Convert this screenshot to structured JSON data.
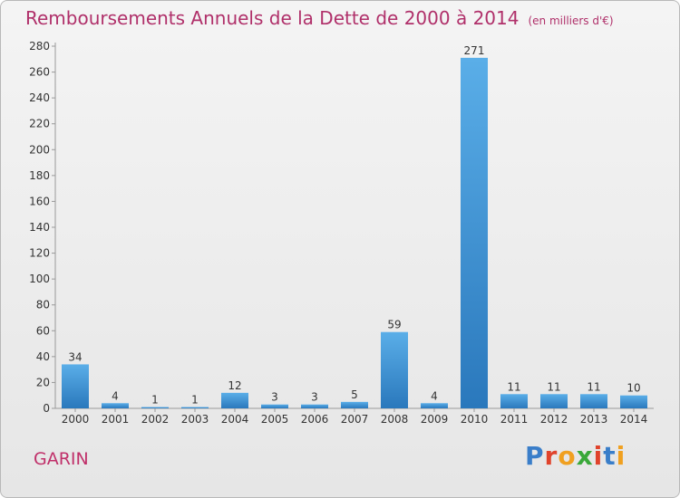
{
  "header": {
    "title": "Remboursements Annuels de la Dette de 2000 à 2014",
    "unit": "(en milliers d'€)"
  },
  "commune": "GARIN",
  "logo": {
    "text": "Proxiti",
    "letters": [
      "P",
      "r",
      "o",
      "x",
      "i",
      "t",
      "i"
    ]
  },
  "colors": {
    "title": "#b0306a",
    "bar_light": "#5aaee8",
    "bar_dark": "#2a78bc"
  },
  "chart_data": {
    "type": "bar",
    "title": "Remboursements Annuels de la Dette de 2000 à 2014",
    "subtitle": "(en milliers d'€)",
    "xlabel": "",
    "ylabel": "",
    "categories": [
      "2000",
      "2001",
      "2002",
      "2003",
      "2004",
      "2005",
      "2006",
      "2007",
      "2008",
      "2009",
      "2010",
      "2011",
      "2012",
      "2013",
      "2014"
    ],
    "values": [
      34,
      4,
      1,
      1,
      12,
      3,
      3,
      5,
      59,
      4,
      271,
      11,
      11,
      11,
      10
    ],
    "data_labels": [
      "34",
      "4",
      "1",
      "1",
      "12",
      "3",
      "3",
      "5",
      "59",
      "4",
      "271",
      "11",
      "11",
      "11",
      "10"
    ],
    "ylim": [
      0,
      280
    ],
    "yticks": [
      0,
      20,
      40,
      60,
      80,
      100,
      120,
      140,
      160,
      180,
      200,
      220,
      240,
      260,
      280
    ],
    "grid": false,
    "legend": "none"
  }
}
